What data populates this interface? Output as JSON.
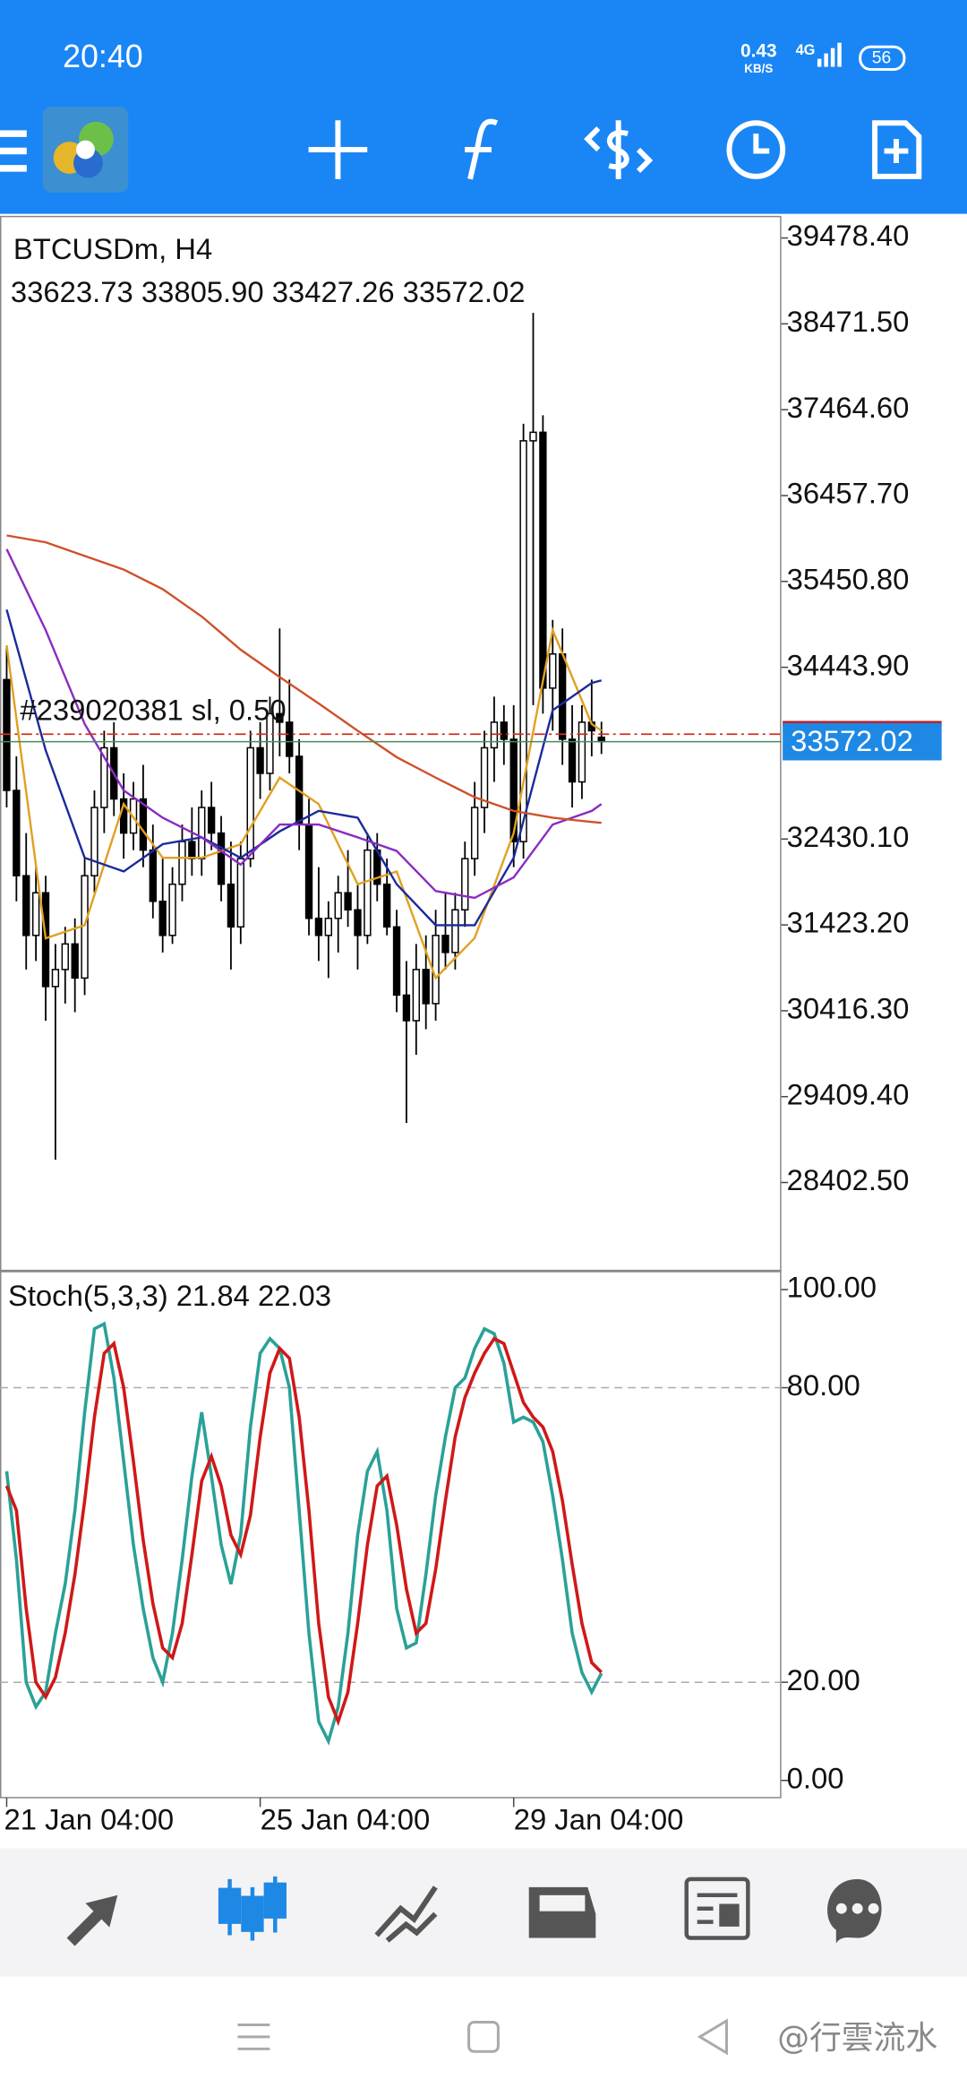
{
  "status_bar": {
    "time": "20:40",
    "net_speed": "0.43",
    "net_unit": "KB/S",
    "network": "4G",
    "battery": "56"
  },
  "order_label": "#239020381 sl, 0.50",
  "watermark": "@行雲流水",
  "chart_data": [
    {
      "type": "candlestick",
      "title": "BTCUSDm, H4",
      "ohlc": "33623.73 33805.90 33427.26 33572.02",
      "categories": [
        "21 Jan 04:00",
        null,
        null,
        null,
        null,
        null,
        null,
        null,
        null,
        null,
        null,
        null,
        null,
        null,
        null,
        null,
        null,
        null,
        null,
        null,
        null,
        null,
        null,
        null,
        null,
        null,
        "25 Jan 04:00",
        null,
        null,
        null,
        null,
        null,
        null,
        null,
        null,
        null,
        null,
        null,
        null,
        null,
        null,
        null,
        null,
        null,
        null,
        null,
        null,
        null,
        null,
        null,
        null,
        null,
        "29 Jan 04:00",
        null,
        null,
        null,
        null,
        null,
        null,
        null,
        null,
        null
      ],
      "open": [
        34300,
        33000,
        32000,
        31300,
        31800,
        30700,
        30900,
        31200,
        30800,
        32000,
        32800,
        33500,
        32900,
        32500,
        32900,
        32300,
        31700,
        31300,
        31900,
        32400,
        32200,
        32800,
        32500,
        31900,
        31400,
        32200,
        33500,
        33200,
        33900,
        33800,
        33400,
        32600,
        31500,
        31300,
        31500,
        31800,
        31600,
        31300,
        32300,
        31900,
        31400,
        30600,
        30300,
        30900,
        30500,
        31300,
        31100,
        31600,
        32200,
        32800,
        33500,
        33800,
        33600,
        32400,
        37100,
        37200,
        34200,
        34600,
        33600,
        33100,
        33800,
        33623.73
      ],
      "high": [
        34700,
        33400,
        32500,
        32100,
        32000,
        31200,
        31400,
        31500,
        32200,
        33000,
        33700,
        33800,
        33200,
        33100,
        33300,
        32600,
        32200,
        32100,
        32600,
        32800,
        33000,
        33100,
        32700,
        32400,
        32400,
        33700,
        33800,
        34100,
        34900,
        34300,
        33600,
        32900,
        32100,
        31700,
        32000,
        32300,
        31900,
        32500,
        32500,
        32200,
        31600,
        31000,
        31200,
        31300,
        31600,
        31800,
        31800,
        32400,
        33100,
        33700,
        34100,
        34000,
        34000,
        37300,
        38600,
        37400,
        35000,
        34900,
        34000,
        34000,
        34300,
        33805.9
      ],
      "low": [
        32800,
        31700,
        30900,
        31000,
        30300,
        28670,
        30500,
        30400,
        30600,
        31800,
        32500,
        32700,
        32200,
        32300,
        32100,
        31500,
        31100,
        31200,
        31700,
        32000,
        32000,
        32300,
        31700,
        30900,
        31200,
        32100,
        32900,
        33000,
        33400,
        33200,
        32300,
        31300,
        31000,
        30800,
        31100,
        31400,
        30900,
        31200,
        31700,
        31300,
        30400,
        29100,
        29900,
        30200,
        30300,
        30900,
        30900,
        31400,
        32000,
        32500,
        33100,
        33300,
        32100,
        32200,
        34000,
        33900,
        33700,
        33300,
        32800,
        32900,
        33400,
        33427.26
      ],
      "close": [
        33000,
        32000,
        31300,
        31800,
        30700,
        30900,
        31200,
        30800,
        32000,
        32800,
        33500,
        32900,
        32500,
        32900,
        32300,
        31700,
        31300,
        31900,
        32400,
        32200,
        32800,
        32500,
        31900,
        31400,
        32200,
        33500,
        33200,
        33900,
        33800,
        33400,
        32600,
        31500,
        31300,
        31500,
        31800,
        31600,
        31300,
        32300,
        31900,
        31400,
        30600,
        30300,
        30900,
        30500,
        31300,
        31100,
        31600,
        32200,
        32800,
        33500,
        33800,
        33600,
        32400,
        37100,
        37200,
        34200,
        34600,
        33600,
        33100,
        33800,
        33700,
        33572.02
      ],
      "series": [
        {
          "color": "#e0a020",
          "x": [
            0,
            4,
            8,
            12,
            16,
            20,
            24,
            28,
            32,
            36,
            40,
            44,
            48,
            52,
            56,
            60,
            61
          ],
          "values": [
            34700,
            31266,
            31420,
            32840,
            32210,
            32210,
            32370,
            33150,
            32840,
            31900,
            32050,
            30800,
            31270,
            32500,
            34880,
            33780,
            33700
          ]
        },
        {
          "color": "#1a2a9c",
          "x": [
            0,
            4,
            8,
            12,
            16,
            20,
            24,
            28,
            32,
            36,
            40,
            44,
            48,
            52,
            56,
            60,
            61
          ],
          "values": [
            35120,
            33470,
            32210,
            32050,
            32370,
            32450,
            32210,
            32520,
            32760,
            32680,
            31900,
            31420,
            31420,
            32210,
            33940,
            34260,
            34290
          ]
        },
        {
          "color": "#8a2bc0",
          "x": [
            0,
            4,
            8,
            12,
            16,
            20,
            24,
            28,
            32,
            36,
            40,
            44,
            48,
            52,
            56,
            60,
            61
          ],
          "values": [
            35830,
            34880,
            33780,
            33000,
            32680,
            32450,
            32130,
            32600,
            32600,
            32450,
            32290,
            31820,
            31740,
            31980,
            32600,
            32760,
            32840
          ]
        },
        {
          "color": "#d0502a",
          "x": [
            0,
            4,
            8,
            12,
            16,
            20,
            24,
            28,
            32,
            36,
            40,
            44,
            48,
            52,
            56,
            60,
            61
          ],
          "values": [
            35990,
            35910,
            35750,
            35590,
            35360,
            35040,
            34650,
            34330,
            34020,
            33700,
            33390,
            33150,
            32920,
            32760,
            32680,
            32630,
            32620
          ]
        }
      ],
      "order_price": 33660,
      "order_color": "#d03020",
      "ask": 33783,
      "price_color": "#1e88e5",
      "ylim": [
        27380,
        39730
      ],
      "yticks": [
        {
          "value": 39478.4,
          "label": "39478.40"
        },
        {
          "value": 38471.5,
          "label": "38471.50"
        },
        {
          "value": 37464.6,
          "label": "37464.60"
        },
        {
          "value": 36457.7,
          "label": "36457.70"
        },
        {
          "value": 35450.8,
          "label": "35450.80"
        },
        {
          "value": 34443.9,
          "label": "34443.90"
        },
        {
          "value": 32430.1,
          "label": "32430.10"
        },
        {
          "value": 31423.2,
          "label": "31423.20"
        },
        {
          "value": 30416.3,
          "label": "30416.30"
        },
        {
          "value": 29409.4,
          "label": "29409.40"
        },
        {
          "value": 28402.5,
          "label": "28402.50"
        }
      ]
    },
    {
      "type": "line",
      "title": "Stoch(5,3,3)",
      "series": [
        {
          "color": "#2aa198",
          "values": [
            63,
            45,
            20,
            15,
            18,
            30,
            40,
            55,
            75,
            92,
            93,
            82,
            65,
            48,
            35,
            25,
            20,
            30,
            45,
            62,
            75,
            62,
            48,
            40,
            50,
            72,
            87,
            90,
            88,
            80,
            55,
            30,
            12,
            8,
            15,
            30,
            50,
            63,
            67,
            55,
            35,
            27,
            28,
            42,
            58,
            70,
            80,
            82,
            88,
            92,
            91,
            85,
            73,
            74,
            73,
            69,
            58,
            45,
            30,
            22,
            18,
            21.84
          ]
        },
        {
          "color": "#d01818",
          "values": [
            60,
            55,
            35,
            20,
            17,
            21,
            30,
            42,
            57,
            74,
            87,
            89,
            80,
            65,
            49,
            36,
            27,
            25,
            32,
            46,
            61,
            66,
            60,
            50,
            46,
            54,
            70,
            83,
            88,
            86,
            74,
            55,
            32,
            17,
            12,
            18,
            32,
            48,
            60,
            62,
            52,
            39,
            30,
            32,
            43,
            57,
            70,
            78,
            83,
            87,
            90,
            89,
            83,
            77,
            74,
            72,
            67,
            57,
            44,
            32,
            24,
            22.03
          ]
        }
      ],
      "ylim": [
        -3.5,
        103.5
      ],
      "yticks": [
        {
          "value": 100,
          "label": "100.00"
        },
        {
          "value": 80,
          "label": "80.00"
        },
        {
          "value": 20,
          "label": "20.00"
        },
        {
          "value": 0,
          "label": "0.00"
        }
      ],
      "dashed_levels": [
        80,
        20
      ]
    }
  ]
}
